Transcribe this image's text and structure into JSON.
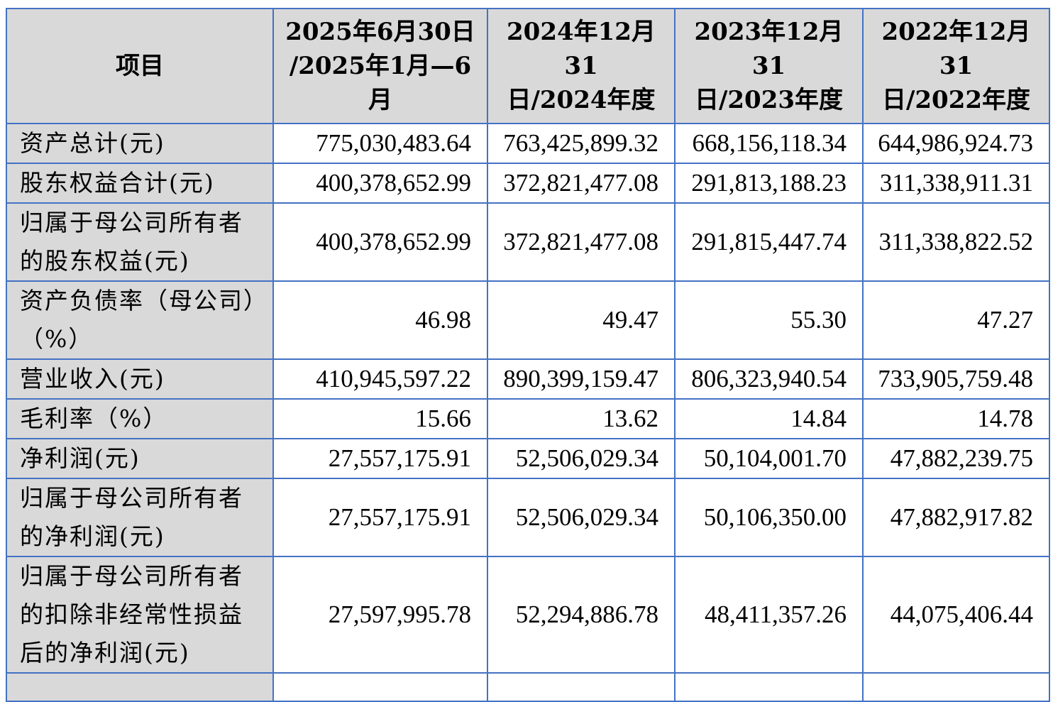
{
  "table": {
    "headers": [
      "项目",
      "2025年6月30日\n/2025年1月—6\n月",
      "2024年12月31\n日/2024年度",
      "2023年12月31\n日/2023年度",
      "2022年12月31\n日/2022年度"
    ],
    "rows": [
      {
        "label": "资产总计(元)",
        "values": [
          "775,030,483.64",
          "763,425,899.32",
          "668,156,118.34",
          "644,986,924.73"
        ]
      },
      {
        "label": "股东权益合计(元)",
        "values": [
          "400,378,652.99",
          "372,821,477.08",
          "291,813,188.23",
          "311,338,911.31"
        ]
      },
      {
        "label": "归属于母公司所有者的股东权益(元)",
        "values": [
          "400,378,652.99",
          "372,821,477.08",
          "291,815,447.74",
          "311,338,822.52"
        ]
      },
      {
        "label": "资产负债率（母公司）（%）",
        "values": [
          "46.98",
          "49.47",
          "55.30",
          "47.27"
        ]
      },
      {
        "label": "营业收入(元)",
        "values": [
          "410,945,597.22",
          "890,399,159.47",
          "806,323,940.54",
          "733,905,759.48"
        ]
      },
      {
        "label": "毛利率（%）",
        "values": [
          "15.66",
          "13.62",
          "14.84",
          "14.78"
        ]
      },
      {
        "label": "净利润(元)",
        "values": [
          "27,557,175.91",
          "52,506,029.34",
          "50,104,001.70",
          "47,882,239.75"
        ]
      },
      {
        "label": "归属于母公司所有者的净利润(元)",
        "values": [
          "27,557,175.91",
          "52,506,029.34",
          "50,106,350.00",
          "47,882,917.82"
        ]
      },
      {
        "label": "归属于母公司所有者的扣除非经常性损益后的净利润(元)",
        "values": [
          "27,597,995.78",
          "52,294,886.78",
          "48,411,357.26",
          "44,075,406.44"
        ]
      }
    ]
  }
}
